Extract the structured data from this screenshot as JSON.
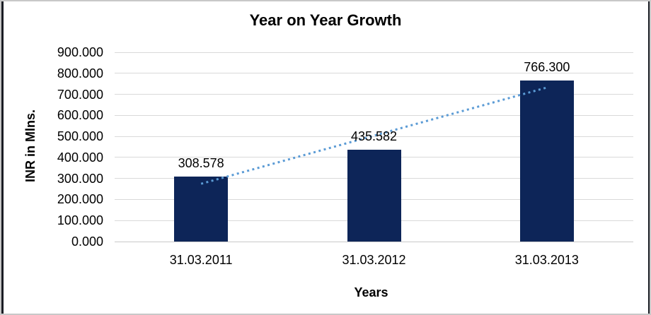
{
  "chart_data": {
    "type": "bar",
    "title": "Year on Year Growth",
    "xlabel": "Years",
    "ylabel": "INR in Mlns.",
    "categories": [
      "31.03.2011",
      "31.03.2012",
      "31.03.2013"
    ],
    "values": [
      308.578,
      435.582,
      766.3
    ],
    "value_labels": [
      "308.578",
      "435.582",
      "766.300"
    ],
    "ylim": [
      0,
      900
    ],
    "ytick_step": 100,
    "ytick_labels": [
      "0.000",
      "100.000",
      "200.000",
      "300.000",
      "400.000",
      "500.000",
      "600.000",
      "700.000",
      "800.000",
      "900.000"
    ],
    "grid": true,
    "legend": "none",
    "bar_color": "#0d2558",
    "gridline_color": "#d9d9d9",
    "trendline": {
      "type": "linear",
      "style": "dotted",
      "color": "#5b9bd5"
    }
  }
}
